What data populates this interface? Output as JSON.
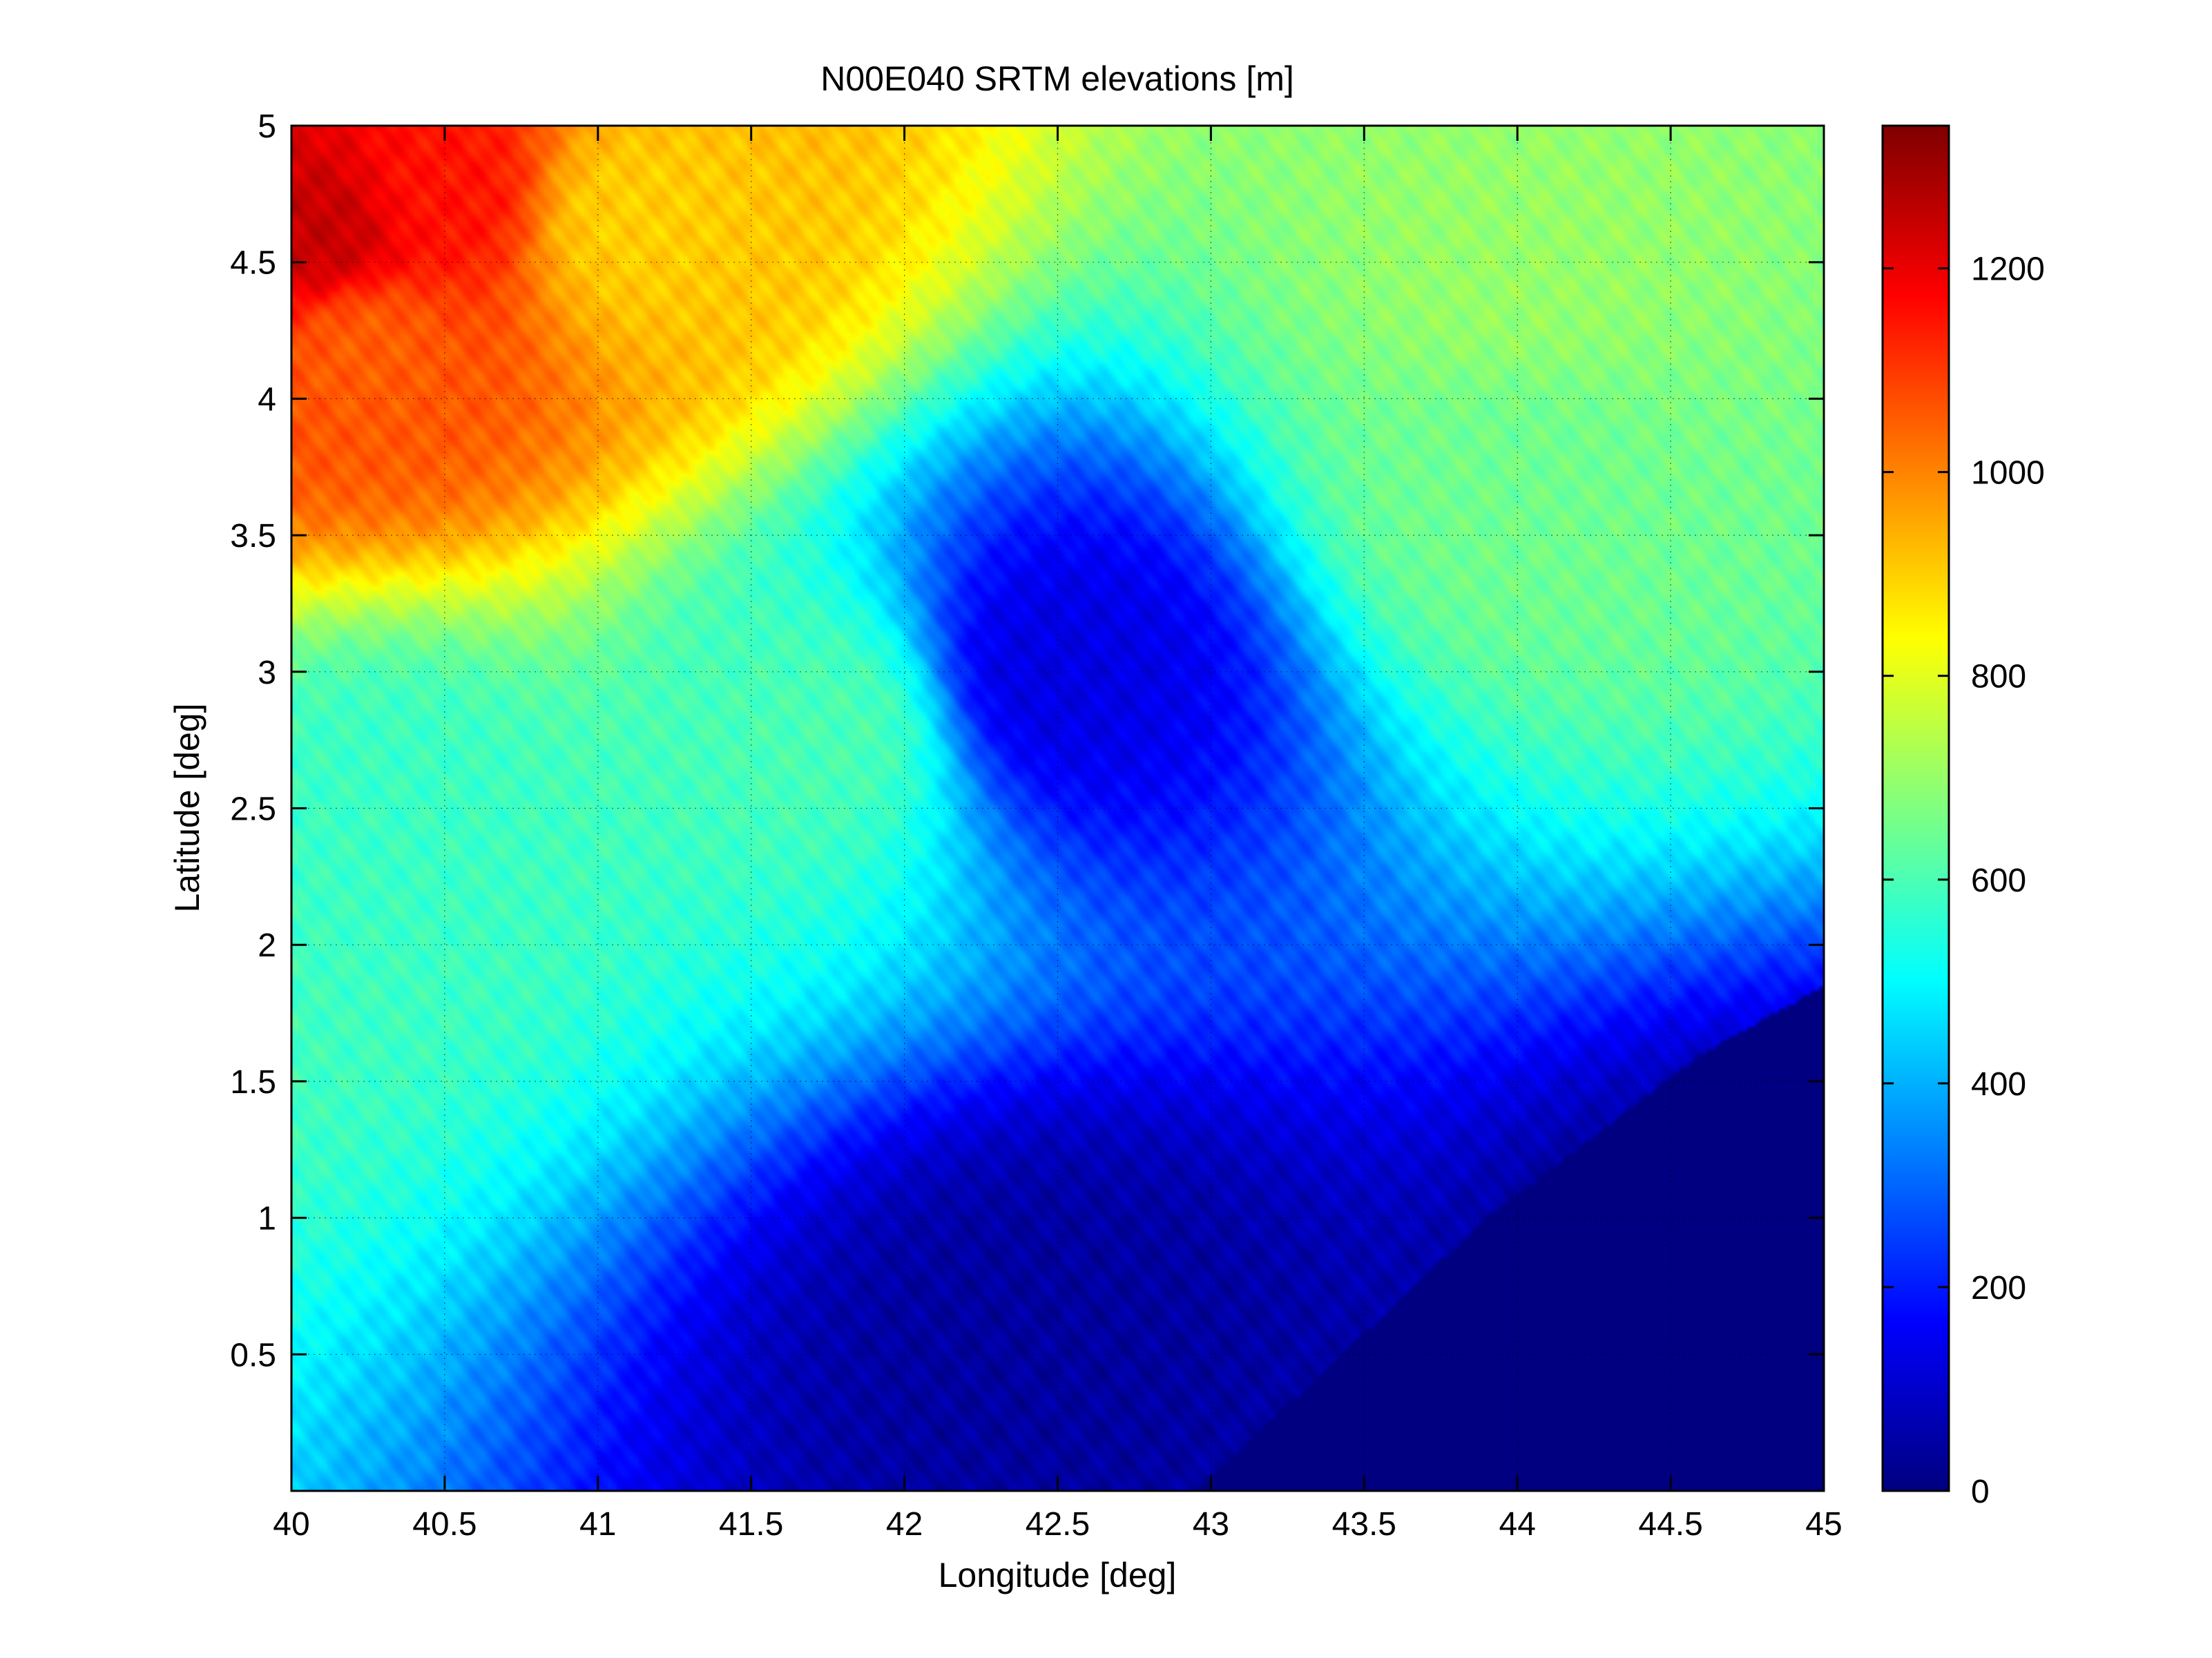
{
  "chart_data": {
    "type": "heatmap",
    "title": "N00E040 SRTM elevations [m]",
    "xlabel": "Longitude [deg]",
    "ylabel": "Latitude [deg]",
    "xlim": [
      40,
      45
    ],
    "ylim": [
      0,
      5
    ],
    "xticks": [
      40,
      40.5,
      41,
      41.5,
      42,
      42.5,
      43,
      43.5,
      44,
      44.5,
      45
    ],
    "xtick_labels": [
      "40",
      "40.5",
      "41",
      "41.5",
      "42",
      "42.5",
      "43",
      "43.5",
      "44",
      "44.5",
      "45"
    ],
    "yticks": [
      0.5,
      1,
      1.5,
      2,
      2.5,
      3,
      3.5,
      4,
      4.5,
      5
    ],
    "ytick_labels": [
      "0.5",
      "1",
      "1.5",
      "2",
      "2.5",
      "3",
      "3.5",
      "4",
      "4.5",
      "5"
    ],
    "grid": true,
    "colormap": "jet",
    "colorbar": {
      "range": [
        0,
        1340
      ],
      "ticks": [
        0,
        200,
        400,
        600,
        800,
        1000,
        1200
      ],
      "tick_labels": [
        "0",
        "200",
        "400",
        "600",
        "800",
        "1000",
        "1200"
      ]
    },
    "ocean_boundary": [
      [
        42.95,
        0
      ],
      [
        43.9,
        1
      ],
      [
        44.6,
        1.6
      ],
      [
        45,
        1.85
      ]
    ],
    "features": [
      {
        "kind": "highland",
        "lon": 40.1,
        "lat": 4.6,
        "elevation": 1250
      },
      {
        "kind": "highland",
        "lon": 40.5,
        "lat": 4.75,
        "elevation": 1150
      },
      {
        "kind": "highland",
        "lon": 40.25,
        "lat": 4.2,
        "elevation": 1050
      },
      {
        "kind": "highland",
        "lon": 41.1,
        "lat": 4.65,
        "elevation": 900
      },
      {
        "kind": "plateau",
        "lon": 44.0,
        "lat": 4.5,
        "elevation": 700
      },
      {
        "kind": "plateau",
        "lon": 44.0,
        "lat": 3.7,
        "elevation": 650
      },
      {
        "kind": "plateau",
        "lon": 41.75,
        "lat": 2.8,
        "elevation": 600
      },
      {
        "kind": "plateau",
        "lon": 40.3,
        "lat": 2.5,
        "elevation": 580
      },
      {
        "kind": "valley",
        "lon": 42.5,
        "lat": 3.0,
        "elevation": 130
      },
      {
        "kind": "lowland",
        "lon": 42.5,
        "lat": 0.5,
        "elevation": 40
      },
      {
        "kind": "lowland",
        "lon": 44.8,
        "lat": 0.4,
        "elevation": 0
      }
    ]
  },
  "colors": {
    "background": "#ffffff",
    "axes": "#000000",
    "grid": "#000000"
  }
}
